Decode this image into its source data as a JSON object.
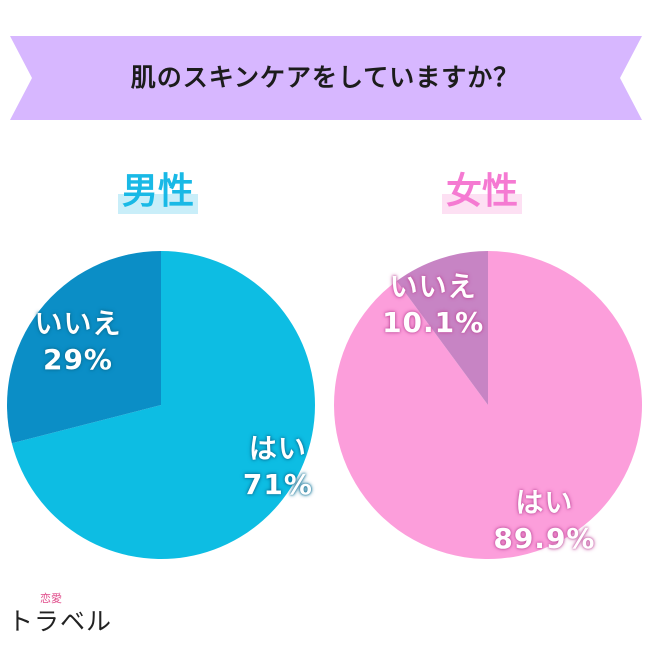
{
  "header": {
    "title": "肌のスキンケアをしていますか？"
  },
  "colors": {
    "banner": "#d7b7ff",
    "male_yes": "#0dbde3",
    "male_no": "#0b8ec6",
    "female_yes": "#fc9edb",
    "female_no": "#c784c4"
  },
  "logo": {
    "small": "恋愛",
    "main": "トラベル"
  },
  "chart_data": [
    {
      "type": "pie",
      "title": "男性",
      "slices": [
        {
          "label": "はい",
          "value": 71,
          "display": "71%"
        },
        {
          "label": "いいえ",
          "value": 29,
          "display": "29%"
        }
      ]
    },
    {
      "type": "pie",
      "title": "女性",
      "slices": [
        {
          "label": "はい",
          "value": 89.9,
          "display": "89.9%"
        },
        {
          "label": "いいえ",
          "value": 10.1,
          "display": "10.1%"
        }
      ]
    }
  ]
}
